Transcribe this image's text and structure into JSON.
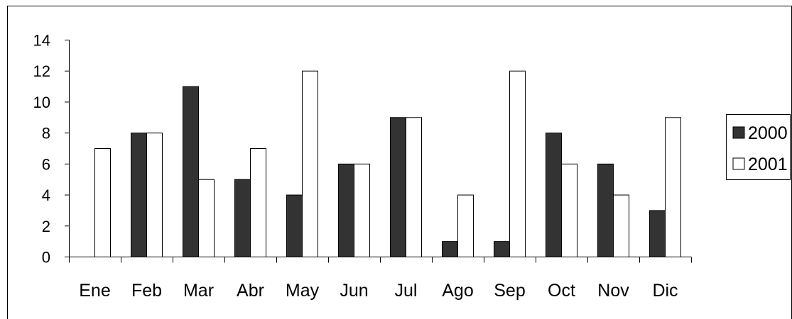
{
  "chart_data": {
    "type": "bar",
    "categories": [
      "Ene",
      "Feb",
      "Mar",
      "Abr",
      "May",
      "Jun",
      "Jul",
      "Ago",
      "Sep",
      "Oct",
      "Nov",
      "Dic"
    ],
    "series": [
      {
        "name": "2000",
        "values": [
          0,
          8,
          11,
          5,
          4,
          6,
          9,
          1,
          1,
          8,
          6,
          3
        ],
        "color": "#333333"
      },
      {
        "name": "2001",
        "values": [
          7,
          8,
          5,
          7,
          12,
          6,
          9,
          4,
          12,
          6,
          4,
          9
        ],
        "color": "#ffffff"
      }
    ],
    "yticks": [
      "0",
      "2",
      "4",
      "6",
      "8",
      "10",
      "12",
      "14"
    ],
    "ylim": [
      0,
      14
    ],
    "grid": false,
    "legend_position": "right"
  }
}
